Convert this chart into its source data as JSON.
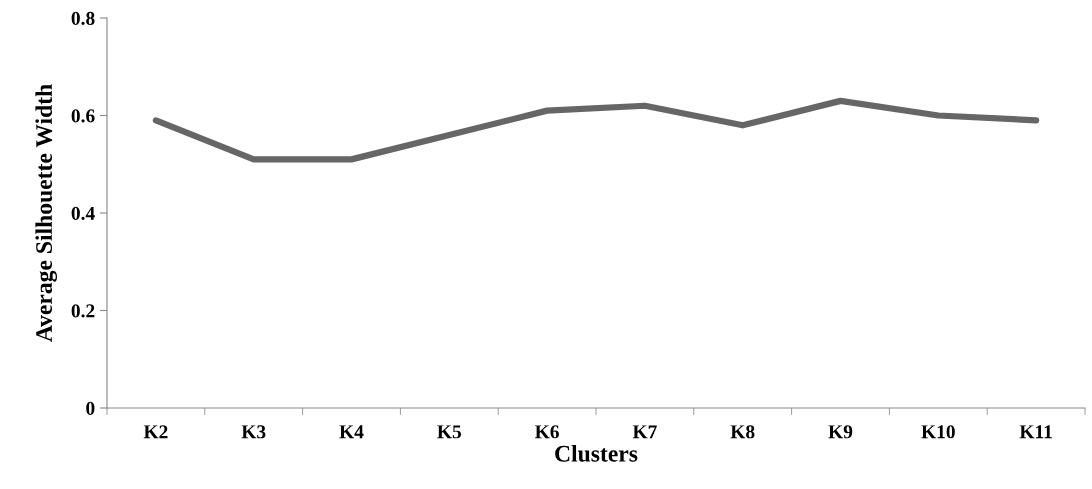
{
  "chart_data": {
    "type": "line",
    "xlabel": "Clusters",
    "ylabel": "Average Silhouette Width",
    "categories": [
      "K2",
      "K3",
      "K4",
      "K5",
      "K6",
      "K7",
      "K8",
      "K9",
      "K10",
      "K11"
    ],
    "series": [
      {
        "color": "#666666",
        "values": [
          0.59,
          0.51,
          0.51,
          0.56,
          0.61,
          0.62,
          0.58,
          0.63,
          0.6,
          0.59
        ]
      }
    ],
    "ylim": [
      0,
      0.8
    ],
    "yticks": [
      0,
      0.2,
      0.4,
      0.6,
      0.8
    ],
    "grid": false,
    "legend": false,
    "marker": "none",
    "line_style": "solid"
  }
}
